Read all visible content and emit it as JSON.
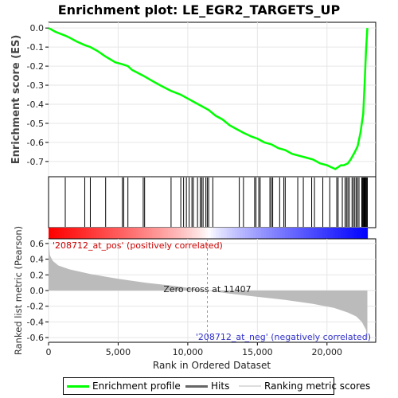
{
  "chart_data": {
    "type": "line",
    "title": "Enrichment plot: LE_EGR2_TARGETS_UP",
    "xlabel": "Rank in Ordered Dataset",
    "ylabel_top": "Enrichment score (ES)",
    "ylabel_bottom": "Ranked list metric (Pearson)",
    "xlim": [
      0,
      23500
    ],
    "es_ylim": [
      -0.78,
      0.03
    ],
    "metric_ylim": [
      -0.66,
      0.66
    ],
    "x_ticks": [
      0,
      5000,
      10000,
      15000,
      20000
    ],
    "x_tick_labels": [
      "0",
      "5,000",
      "10,000",
      "15,000",
      "20,000"
    ],
    "es_ticks": [
      0.0,
      -0.1,
      -0.2,
      -0.3,
      -0.4,
      -0.5,
      -0.6,
      -0.7
    ],
    "es_tick_labels": [
      "0.0",
      "-0.1",
      "-0.2",
      "-0.3",
      "-0.4",
      "-0.5",
      "-0.6",
      "-0.7"
    ],
    "metric_ticks": [
      0.6,
      0.4,
      0.2,
      0.0,
      -0.2,
      -0.4,
      -0.6
    ],
    "metric_tick_labels": [
      "0.6",
      "0.4",
      "0.2",
      "0.0",
      "-0.2",
      "-0.4",
      "-0.6"
    ],
    "n_genes": 22900,
    "zero_cross_rank": 11407,
    "zero_cross_label": "Zero cross at 11407",
    "pos_label": "'208712_at_pos' (positively correlated)",
    "neg_label": "'208712_at_neg' (negatively correlated)",
    "series": [
      {
        "name": "Enrichment profile",
        "color": "#00ff00",
        "x": [
          0,
          500,
          1200,
          1500,
          2000,
          2600,
          3000,
          3500,
          4100,
          4800,
          5300,
          5700,
          6000,
          6800,
          7500,
          8000,
          8800,
          9500,
          10000,
          10500,
          11000,
          11500,
          12000,
          12500,
          13000,
          13500,
          14000,
          14600,
          15000,
          15500,
          16000,
          16500,
          17000,
          17500,
          18000,
          18500,
          19000,
          19500,
          20000,
          20300,
          20600,
          20800,
          21000,
          21200,
          21500,
          21700,
          22000,
          22200,
          22400,
          22600,
          22700,
          22800,
          22900
        ],
        "values": [
          0.0,
          -0.02,
          -0.04,
          -0.05,
          -0.07,
          -0.09,
          -0.1,
          -0.12,
          -0.15,
          -0.18,
          -0.19,
          -0.2,
          -0.22,
          -0.25,
          -0.28,
          -0.3,
          -0.33,
          -0.35,
          -0.37,
          -0.39,
          -0.41,
          -0.43,
          -0.46,
          -0.48,
          -0.51,
          -0.53,
          -0.55,
          -0.57,
          -0.58,
          -0.6,
          -0.61,
          -0.63,
          -0.64,
          -0.66,
          -0.67,
          -0.68,
          -0.69,
          -0.71,
          -0.72,
          -0.73,
          -0.74,
          -0.73,
          -0.72,
          -0.72,
          -0.71,
          -0.69,
          -0.65,
          -0.62,
          -0.55,
          -0.45,
          -0.3,
          -0.12,
          0.0
        ]
      },
      {
        "name": "Ranking metric scores",
        "color": "#bbbbbb",
        "x": [
          0,
          100,
          300,
          700,
          1500,
          3000,
          5000,
          7000,
          9000,
          11407,
          13000,
          15000,
          17000,
          19000,
          20500,
          21500,
          22100,
          22500,
          22800,
          22900
        ],
        "values": [
          0.66,
          0.45,
          0.38,
          0.32,
          0.27,
          0.21,
          0.15,
          0.1,
          0.06,
          0.0,
          -0.04,
          -0.08,
          -0.12,
          -0.17,
          -0.22,
          -0.28,
          -0.33,
          -0.4,
          -0.5,
          -0.62
        ]
      }
    ],
    "hits": [
      1200,
      2600,
      3000,
      4100,
      5300,
      5400,
      5700,
      6800,
      6900,
      8800,
      9500,
      9700,
      9900,
      10100,
      10300,
      10400,
      10700,
      10900,
      11000,
      11100,
      11300,
      11400,
      11500,
      11800,
      13700,
      14000,
      14800,
      14900,
      15100,
      15200,
      15900,
      16000,
      16100,
      16600,
      16900,
      17000,
      17900,
      18300,
      18900,
      19100,
      19700,
      20200,
      20700,
      20800,
      21100,
      21300,
      21400,
      21500,
      21600,
      21800,
      21900,
      22000,
      22100,
      22200,
      22300,
      22500,
      22550,
      22600,
      22650,
      22700,
      22750,
      22800,
      22850,
      22900
    ],
    "legend": [
      {
        "label": "Enrichment profile",
        "color": "#00ff00"
      },
      {
        "label": "Hits",
        "color": "#000000"
      },
      {
        "label": "Ranking metric scores",
        "color": "#dddddd"
      }
    ],
    "legend_position": "bottom"
  }
}
